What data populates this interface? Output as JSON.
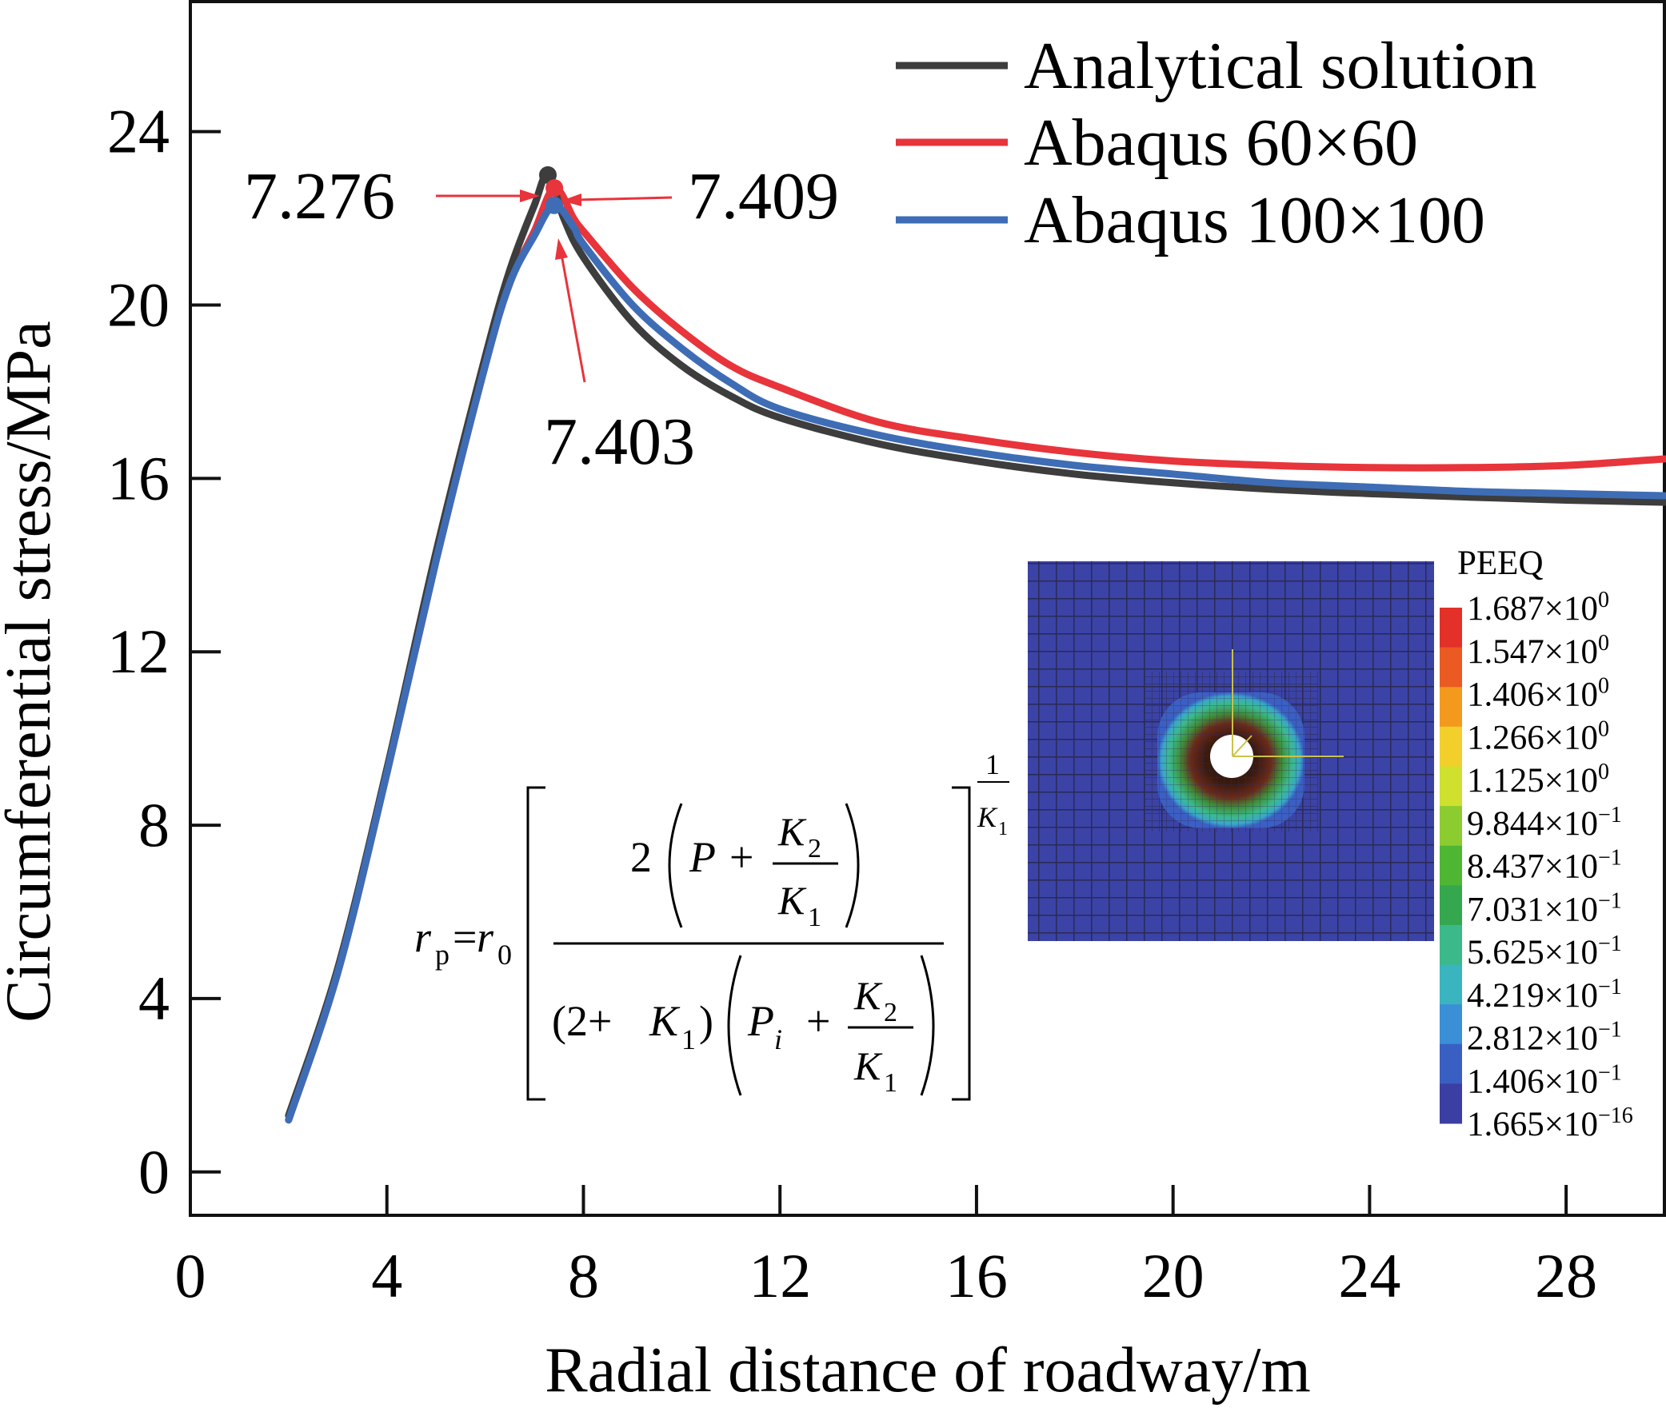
{
  "chart_data": {
    "type": "line",
    "xlabel": "Radial distance of roadway/m",
    "ylabel": "Circumferential stress/MPa",
    "xlim": [
      0,
      30
    ],
    "ylim": [
      -1,
      27
    ],
    "xticks": [
      0,
      4,
      8,
      12,
      16,
      20,
      24,
      28
    ],
    "yticks": [
      0,
      4,
      8,
      12,
      16,
      20,
      24
    ],
    "grid": false,
    "legend_position": "top-right",
    "series": [
      {
        "name": "Analytical solution",
        "color": "#3d3d3d",
        "x": [
          2.0,
          3.0,
          4.0,
          5.0,
          6.0,
          6.5,
          7.0,
          7.276,
          7.6,
          8.0,
          9.0,
          10.0,
          11.0,
          12.0,
          14.0,
          16.0,
          18.0,
          20.0,
          22.0,
          24.0,
          26.0,
          28.0,
          30.0
        ],
        "y": [
          1.3,
          4.7,
          9.3,
          14.3,
          18.8,
          20.8,
          22.3,
          23.0,
          22.0,
          21.1,
          19.6,
          18.6,
          17.9,
          17.4,
          16.8,
          16.4,
          16.1,
          15.9,
          15.75,
          15.65,
          15.57,
          15.5,
          15.45
        ]
      },
      {
        "name": "Abaqus 60×60",
        "color": "#e8343b",
        "x": [
          2.0,
          3.0,
          4.0,
          5.0,
          6.0,
          6.5,
          7.0,
          7.409,
          7.8,
          8.0,
          9.0,
          10.0,
          11.0,
          12.0,
          14.0,
          16.0,
          18.0,
          20.0,
          22.0,
          24.0,
          26.0,
          28.0,
          30.0
        ],
        "y": [
          1.2,
          4.6,
          9.2,
          14.1,
          18.6,
          20.5,
          21.7,
          22.7,
          22.0,
          21.7,
          20.4,
          19.4,
          18.6,
          18.1,
          17.3,
          16.9,
          16.6,
          16.4,
          16.3,
          16.25,
          16.25,
          16.3,
          16.45
        ]
      },
      {
        "name": "Abaqus 100×100",
        "color": "#3e6db6",
        "x": [
          2.0,
          3.0,
          4.0,
          5.0,
          6.0,
          6.5,
          7.0,
          7.403,
          7.8,
          8.0,
          9.0,
          10.0,
          11.0,
          12.0,
          14.0,
          16.0,
          18.0,
          20.0,
          22.0,
          24.0,
          26.0,
          28.0,
          30.0
        ],
        "y": [
          1.2,
          4.6,
          9.2,
          14.1,
          18.6,
          20.5,
          21.6,
          22.3,
          21.8,
          21.4,
          20.0,
          19.0,
          18.2,
          17.6,
          17.0,
          16.6,
          16.3,
          16.1,
          15.9,
          15.8,
          15.7,
          15.65,
          15.6
        ]
      }
    ],
    "annotations": [
      {
        "text": "7.276",
        "x": 7.276,
        "y": 23.0,
        "color": "#e8343b"
      },
      {
        "text": "7.409",
        "x": 7.409,
        "y": 22.7,
        "color": "#e8343b"
      },
      {
        "text": "7.403",
        "x": 7.403,
        "y": 22.3,
        "color": "#e8343b"
      }
    ],
    "inset": {
      "title": "PEEQ",
      "colorbar": [
        {
          "label": "1.687×10",
          "exp": "0",
          "color": "#e3312a"
        },
        {
          "label": "1.547×10",
          "exp": "0",
          "color": "#ea5a22"
        },
        {
          "label": "1.406×10",
          "exp": "0",
          "color": "#f39a1e"
        },
        {
          "label": "1.266×10",
          "exp": "0",
          "color": "#f3cf2b"
        },
        {
          "label": "1.125×10",
          "exp": "0",
          "color": "#cfe02f"
        },
        {
          "label": "9.844×10",
          "exp": "−1",
          "color": "#8ccc31"
        },
        {
          "label": "8.437×10",
          "exp": "−1",
          "color": "#4fb634"
        },
        {
          "label": "7.031×10",
          "exp": "−1",
          "color": "#35a84f"
        },
        {
          "label": "5.625×10",
          "exp": "−1",
          "color": "#3bb98a"
        },
        {
          "label": "4.219×10",
          "exp": "−1",
          "color": "#3ab5c0"
        },
        {
          "label": "2.812×10",
          "exp": "−1",
          "color": "#3a8fd6"
        },
        {
          "label": "1.406×10",
          "exp": "−1",
          "color": "#3a5fc3"
        },
        {
          "label": "1.665×10",
          "exp": "−16",
          "color": "#3b3fa3"
        }
      ]
    },
    "formula": {
      "lhs_r": "r",
      "lhs_sub": "p",
      "eq": "=",
      "r0": "r",
      "r0_sub": "0",
      "num_two": "2",
      "P": "P",
      "plus": "+",
      "K2": "K",
      "K2_sub": "2",
      "K1": "K",
      "K1_sub": "1",
      "den_open": "(2+",
      "close": ")",
      "Pi": "P",
      "Pi_sub": "i",
      "exp_one": "1"
    }
  }
}
